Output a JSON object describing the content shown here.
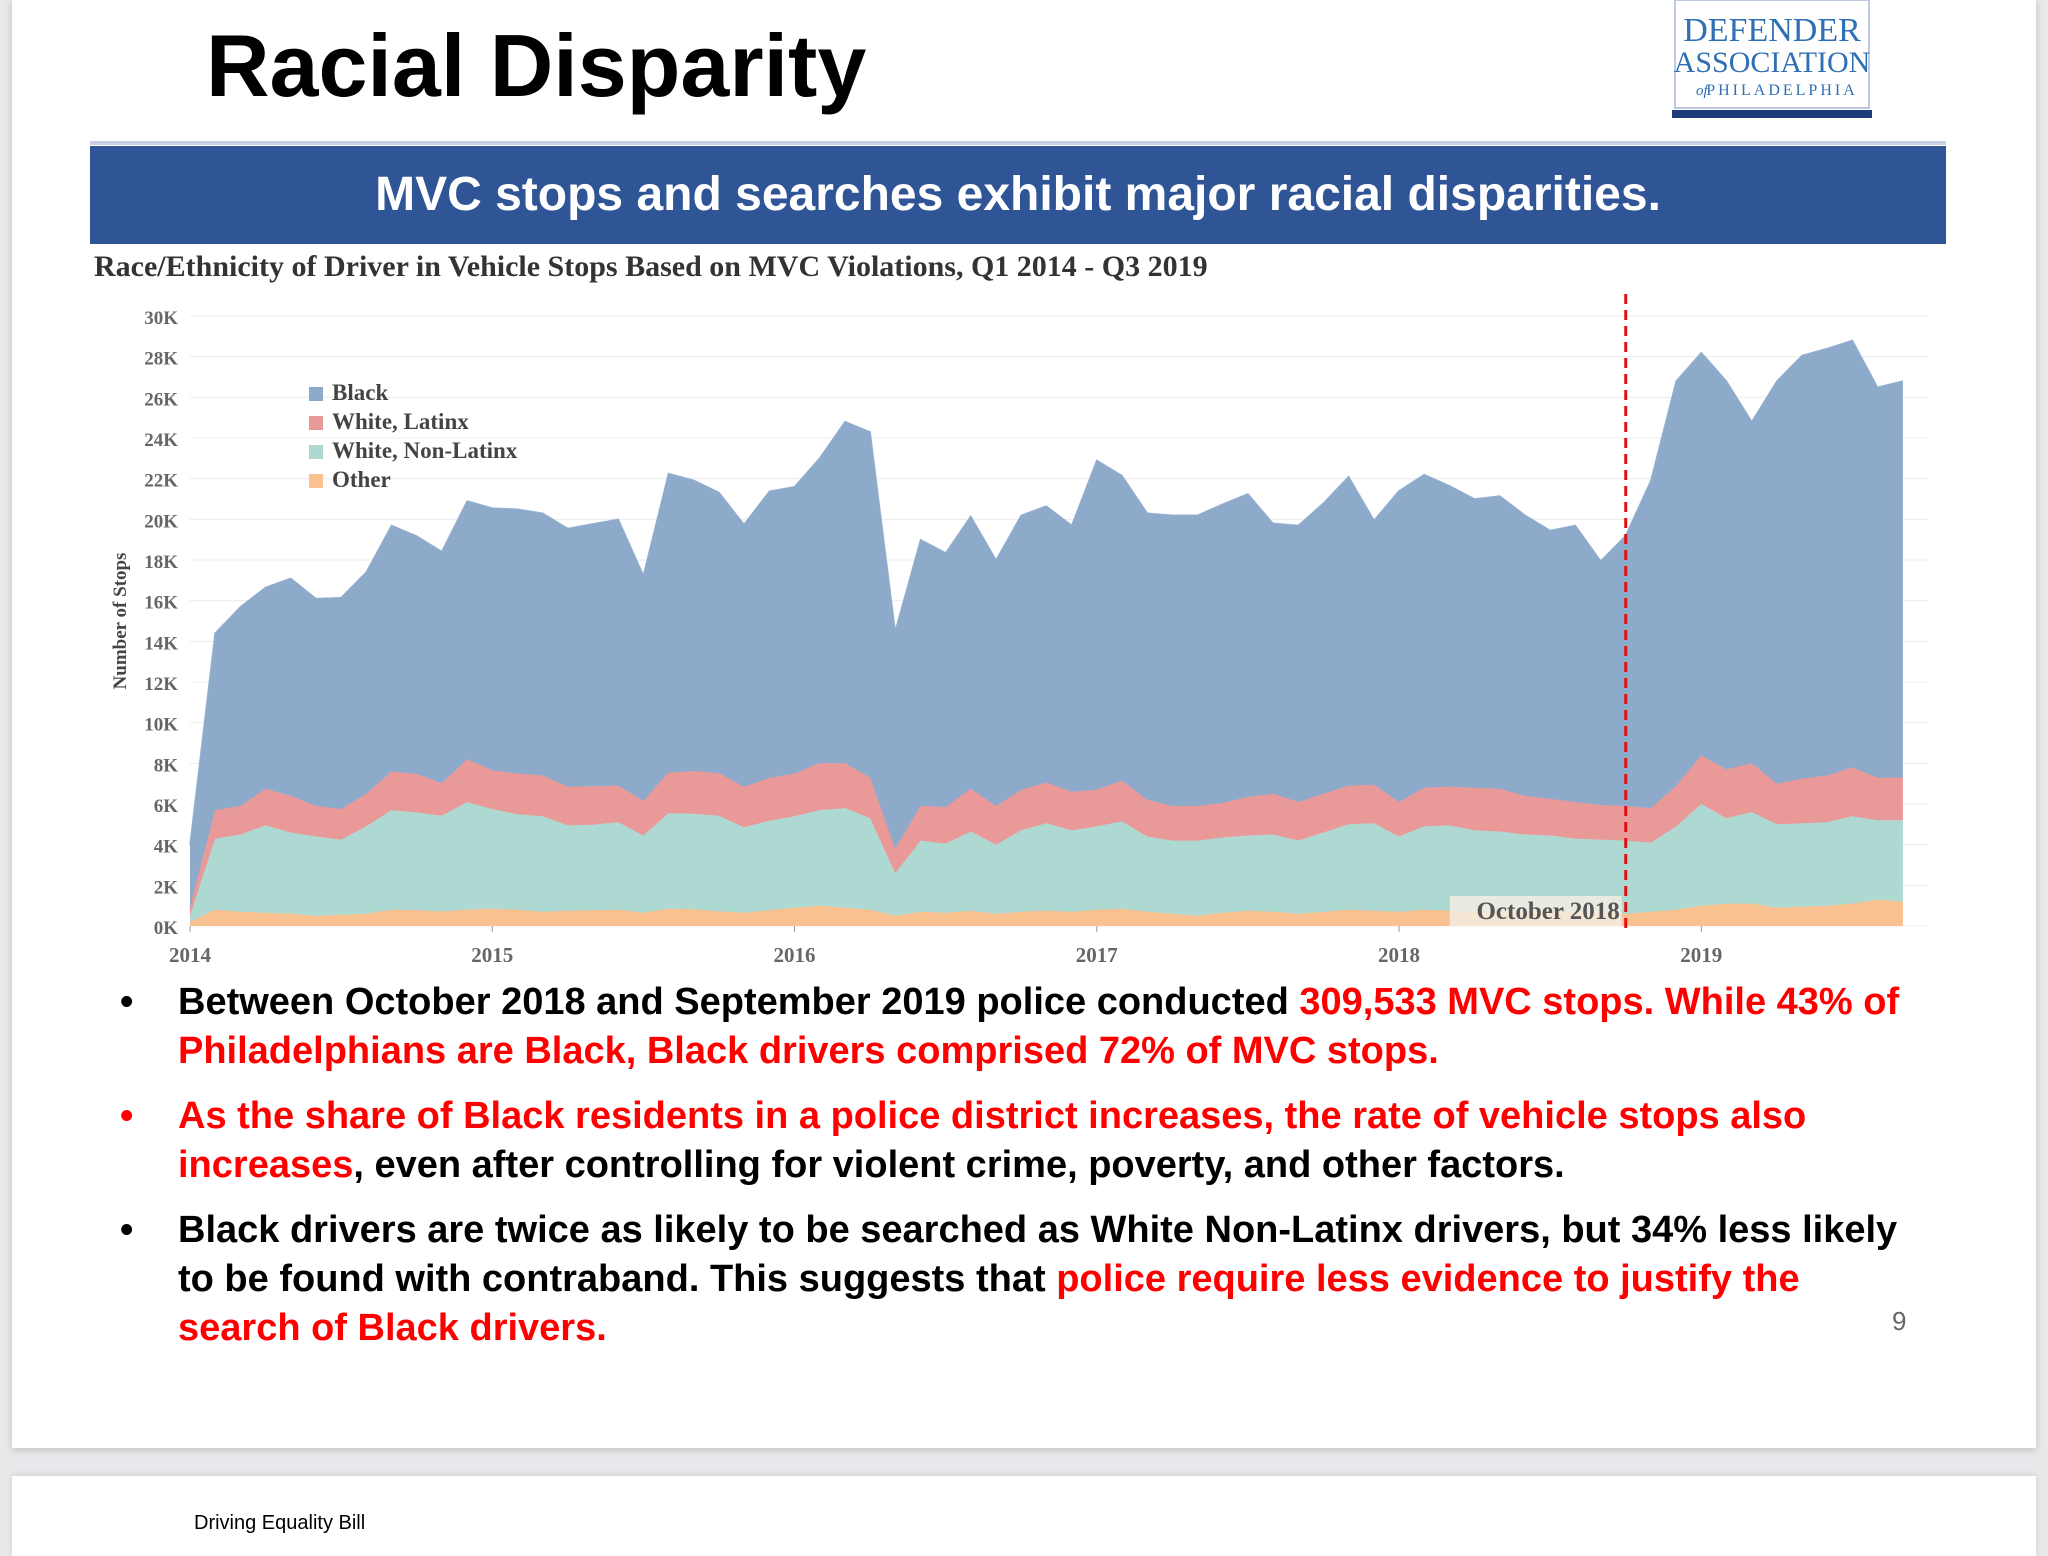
{
  "slide": {
    "title": "Racial Disparity",
    "logo": {
      "line1": "DEFENDER",
      "line2": "ASSOCIATION",
      "line3_of": "of",
      "line3": "PHILADELPHIA"
    },
    "banner": "MVC stops and searches exhibit major racial disparities.",
    "page_number": "9"
  },
  "bullets": [
    {
      "segments": [
        {
          "text": "Between October 2018 and September 2019 police conducted ",
          "red": false
        },
        {
          "text": "309,533 MVC stops. While 43% of Philadelphians are Black, Black drivers comprised 72% of MVC stops.",
          "red": true
        }
      ]
    },
    {
      "bullet_red": true,
      "segments": [
        {
          "text": "As the share of Black residents in a police district increases, the rate of vehicle stops also increases",
          "red": true
        },
        {
          "text": ", even after controlling for violent crime, poverty, and other factors.",
          "red": false
        }
      ]
    },
    {
      "segments": [
        {
          "text": "Black drivers are twice as likely to be searched as White Non-Latinx drivers, but 34% less likely to be found with contraband. This suggests that ",
          "red": false
        },
        {
          "text": "police require less evidence to justify the search of Black drivers.",
          "red": true
        }
      ]
    }
  ],
  "next_slide": {
    "footer": "Driving Equality Bill"
  },
  "colors": {
    "banner": "#2f5597",
    "highlight_red": "#ff0000",
    "black_series": "#8eaacb",
    "white_latinx_series": "#ea9999",
    "white_nonlatinx_series": "#aed9d2",
    "other_series": "#f9c18f",
    "marker_line": "#e01010"
  },
  "chart_data": {
    "type": "area",
    "stacked": true,
    "title": "Race/Ethnicity of Driver in Vehicle Stops Based on MVC Violations, Q1 2014 - Q3 2019",
    "ylabel": "Number of Stops",
    "xlabel": "",
    "ylim": [
      0,
      30000
    ],
    "yticks": [
      0,
      2000,
      4000,
      6000,
      8000,
      10000,
      12000,
      14000,
      16000,
      18000,
      20000,
      22000,
      24000,
      26000,
      28000,
      30000
    ],
    "ytick_labels": [
      "0K",
      "2K",
      "4K",
      "6K",
      "8K",
      "10K",
      "12K",
      "14K",
      "16K",
      "18K",
      "20K",
      "22K",
      "24K",
      "26K",
      "28K",
      "30K"
    ],
    "xticks": [
      2014,
      2015,
      2016,
      2017,
      2018,
      2019
    ],
    "x_start": 2014.0,
    "x_end": 2019.75,
    "grid": true,
    "legend_position": "top-left",
    "annotation": {
      "x": 2018.75,
      "label": "October 2018",
      "style": "dashed-red-vertical"
    },
    "x": [
      2014.0,
      2014.083,
      2014.167,
      2014.25,
      2014.333,
      2014.417,
      2014.5,
      2014.583,
      2014.667,
      2014.75,
      2014.833,
      2014.917,
      2015.0,
      2015.083,
      2015.167,
      2015.25,
      2015.333,
      2015.417,
      2015.5,
      2015.583,
      2015.667,
      2015.75,
      2015.833,
      2015.917,
      2016.0,
      2016.083,
      2016.167,
      2016.25,
      2016.333,
      2016.417,
      2016.5,
      2016.583,
      2016.667,
      2016.75,
      2016.833,
      2016.917,
      2017.0,
      2017.083,
      2017.167,
      2017.25,
      2017.333,
      2017.417,
      2017.5,
      2017.583,
      2017.667,
      2017.75,
      2017.833,
      2017.917,
      2018.0,
      2018.083,
      2018.167,
      2018.25,
      2018.333,
      2018.417,
      2018.5,
      2018.583,
      2018.667,
      2018.75,
      2018.833,
      2018.917,
      2019.0,
      2019.083,
      2019.167,
      2019.25,
      2019.333,
      2019.417,
      2019.5,
      2019.583,
      2019.667
    ],
    "series": [
      {
        "name": "Other",
        "values": [
          200,
          800,
          700,
          650,
          600,
          500,
          550,
          600,
          800,
          780,
          720,
          800,
          850,
          800,
          700,
          750,
          780,
          800,
          650,
          850,
          820,
          720,
          650,
          780,
          900,
          1000,
          900,
          800,
          500,
          700,
          650,
          750,
          600,
          700,
          750,
          700,
          800,
          850,
          700,
          600,
          500,
          650,
          750,
          700,
          600,
          700,
          800,
          750,
          700,
          800,
          750,
          700,
          650,
          700,
          750,
          700,
          650,
          600,
          700,
          800,
          1000,
          1100,
          1100,
          900,
          950,
          1000,
          1100,
          1300,
          1200
        ]
      },
      {
        "name": "White, Non-Latinx",
        "values": [
          300,
          3500,
          3800,
          4300,
          4000,
          3900,
          3700,
          4300,
          4900,
          4800,
          4700,
          5300,
          4900,
          4700,
          4700,
          4200,
          4200,
          4300,
          3800,
          4700,
          4700,
          4700,
          4200,
          4400,
          4500,
          4700,
          4900,
          4500,
          2100,
          3500,
          3400,
          3900,
          3400,
          4000,
          4300,
          4000,
          4100,
          4300,
          3700,
          3600,
          3700,
          3700,
          3700,
          3800,
          3600,
          3900,
          4200,
          4300,
          3700,
          4100,
          4200,
          4000,
          4000,
          3800,
          3700,
          3600,
          3600,
          3600,
          3400,
          4100,
          5000,
          4200,
          4500,
          4100,
          4100,
          4100,
          4300,
          3900,
          4000
        ]
      },
      {
        "name": "White, Latinx",
        "values": [
          400,
          1400,
          1400,
          1800,
          1800,
          1500,
          1500,
          1600,
          1900,
          1900,
          1600,
          2100,
          1900,
          2000,
          2000,
          1900,
          1900,
          1800,
          1700,
          2000,
          2100,
          2100,
          2000,
          2100,
          2100,
          2300,
          2200,
          2000,
          1200,
          1700,
          1800,
          2100,
          1900,
          2000,
          2000,
          1900,
          1800,
          2000,
          1800,
          1700,
          1700,
          1700,
          1900,
          2000,
          1900,
          1900,
          1900,
          1900,
          1700,
          1900,
          1900,
          2100,
          2100,
          1900,
          1800,
          1800,
          1700,
          1700,
          1700,
          2000,
          2400,
          2400,
          2400,
          2000,
          2200,
          2300,
          2400,
          2100,
          2100
        ]
      },
      {
        "name": "Black",
        "values": [
          3100,
          8700,
          9800,
          9900,
          10700,
          10200,
          10400,
          10900,
          12100,
          11700,
          11400,
          12700,
          12900,
          13000,
          12900,
          12700,
          12900,
          13100,
          11100,
          14700,
          14300,
          13800,
          12900,
          14100,
          14100,
          15000,
          16800,
          17000,
          10700,
          13100,
          12500,
          13400,
          12100,
          13500,
          13600,
          13100,
          16200,
          15000,
          14100,
          14300,
          14300,
          14700,
          14900,
          13300,
          13600,
          14300,
          15200,
          13000,
          15300,
          15400,
          14800,
          14200,
          14400,
          13800,
          13200,
          13600,
          12000,
          13300,
          16100,
          19900,
          19800,
          19100,
          16800,
          19800,
          20800,
          21000,
          21000,
          19200,
          19500
        ]
      }
    ]
  }
}
